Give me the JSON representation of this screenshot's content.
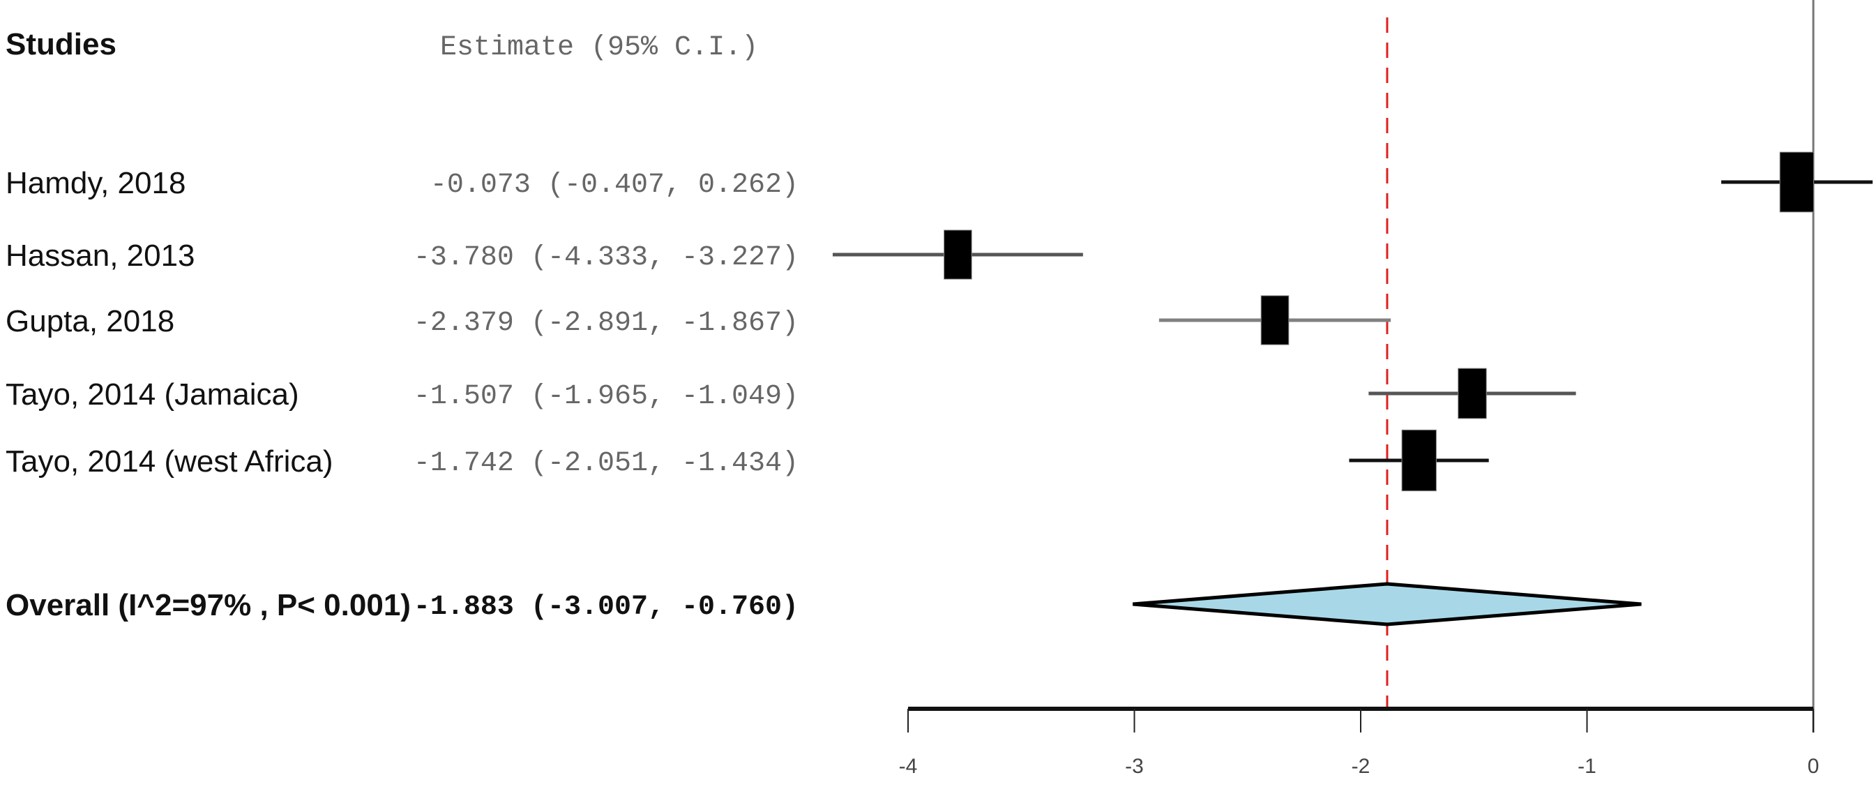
{
  "chart_data": {
    "type": "forest",
    "columns": {
      "studies_header": "Studies",
      "estimate_header": "Estimate (95% C.I.)"
    },
    "studies": [
      {
        "name": "Hamdy, 2018",
        "estimate": -0.073,
        "lower": -0.407,
        "upper": 0.262,
        "text": "-0.073 (-0.407,  0.262)",
        "line_color": "#111111",
        "box_scale": 1.1
      },
      {
        "name": "Hassan, 2013",
        "estimate": -3.78,
        "lower": -4.333,
        "upper": -3.227,
        "text": "-3.780 (-4.333, -3.227)",
        "line_color": "#555555",
        "box_scale": 0.9
      },
      {
        "name": "Gupta, 2018",
        "estimate": -2.379,
        "lower": -2.891,
        "upper": -1.867,
        "text": "-2.379 (-2.891, -1.867)",
        "line_color": "#808080",
        "box_scale": 0.9
      },
      {
        "name": "Tayo, 2014 (Jamaica)",
        "estimate": -1.507,
        "lower": -1.965,
        "upper": -1.049,
        "text": "-1.507 (-1.965, -1.049)",
        "line_color": "#555555",
        "box_scale": 0.92
      },
      {
        "name": "Tayo, 2014 (west Africa)",
        "estimate": -1.742,
        "lower": -2.051,
        "upper": -1.434,
        "text": "-1.742 (-2.051, -1.434)",
        "line_color": "#111111",
        "box_scale": 1.12
      }
    ],
    "overall": {
      "name": "Overall (I^2=97% , P< 0.001)",
      "estimate": -1.883,
      "lower": -3.007,
      "upper": -0.76,
      "text": "-1.883 (-3.007, -0.760)"
    },
    "xlim": [
      -4,
      0
    ],
    "xticks": [
      -4,
      -3,
      -2,
      -1,
      0
    ],
    "tick_labels": [
      "-4",
      "-3",
      "-2",
      "-1",
      "0"
    ],
    "reference_line": 0,
    "summary_line": -1.883,
    "colors": {
      "diamond_fill": "#a8d8e8",
      "summary_line": "#e02020",
      "box": "#000000"
    }
  }
}
